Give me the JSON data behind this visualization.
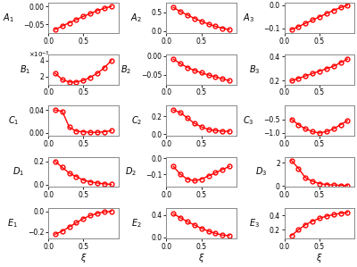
{
  "xi": [
    0.1,
    0.2,
    0.3,
    0.4,
    0.5,
    0.6,
    0.7,
    0.8,
    0.9
  ],
  "subplots": [
    {
      "label": "$A_1$",
      "row": 0,
      "col": 0,
      "values": [
        -0.065,
        -0.055,
        -0.046,
        -0.037,
        -0.028,
        -0.02,
        -0.012,
        -0.005,
        0.0
      ],
      "ylim": [
        -0.075,
        0.01
      ],
      "yticks": [
        -0.05,
        0.0
      ]
    },
    {
      "label": "$A_2$",
      "row": 0,
      "col": 1,
      "values": [
        0.63,
        0.52,
        0.43,
        0.34,
        0.26,
        0.19,
        0.13,
        0.08,
        0.04
      ],
      "ylim": [
        -0.05,
        0.75
      ],
      "yticks": [
        0.0,
        0.5
      ]
    },
    {
      "label": "$A_3$",
      "row": 0,
      "col": 2,
      "values": [
        -0.105,
        -0.092,
        -0.078,
        -0.064,
        -0.05,
        -0.036,
        -0.022,
        -0.01,
        0.0
      ],
      "ylim": [
        -0.12,
        0.01
      ],
      "yticks": [
        -0.1,
        0.0
      ]
    },
    {
      "label": "$B_1$",
      "row": 1,
      "col": 0,
      "values": [
        0.0024,
        0.0016,
        0.0013,
        0.0013,
        0.0015,
        0.0019,
        0.0024,
        0.0031,
        0.004
      ],
      "ylim": [
        0.001,
        0.0048
      ],
      "yticks": [
        0.002,
        0.004
      ],
      "sci": true
    },
    {
      "label": "$B_2$",
      "row": 1,
      "col": 1,
      "values": [
        -0.008,
        -0.02,
        -0.03,
        -0.038,
        -0.044,
        -0.05,
        -0.055,
        -0.06,
        -0.065
      ],
      "ylim": [
        -0.075,
        0.005
      ],
      "yticks": [
        -0.05,
        0.0
      ]
    },
    {
      "label": "$B_3$",
      "row": 1,
      "col": 2,
      "values": [
        0.2,
        0.22,
        0.24,
        0.26,
        0.28,
        0.3,
        0.32,
        0.35,
        0.38
      ],
      "ylim": [
        0.17,
        0.42
      ],
      "yticks": [
        0.2,
        0.4
      ]
    },
    {
      "label": "$C_1$",
      "row": 2,
      "col": 0,
      "values": [
        0.04,
        0.038,
        0.01,
        0.003,
        0.002,
        0.001,
        0.001,
        0.002,
        0.004
      ],
      "ylim": [
        -0.005,
        0.048
      ],
      "yticks": [
        0.0,
        0.04
      ]
    },
    {
      "label": "$C_2$",
      "row": 2,
      "col": 1,
      "values": [
        0.27,
        0.24,
        0.18,
        0.12,
        0.08,
        0.05,
        0.04,
        0.03,
        0.03
      ],
      "ylim": [
        -0.02,
        0.32
      ],
      "yticks": [
        0.0,
        0.2
      ]
    },
    {
      "label": "$C_3$",
      "row": 2,
      "col": 2,
      "values": [
        -0.5,
        -0.7,
        -0.85,
        -0.95,
        -1.0,
        -0.95,
        -0.85,
        -0.7,
        -0.55
      ],
      "ylim": [
        -1.1,
        0.0
      ],
      "yticks": [
        -1.0,
        -0.5
      ]
    },
    {
      "label": "$D_1$",
      "row": 3,
      "col": 0,
      "values": [
        0.2,
        0.15,
        0.1,
        0.07,
        0.04,
        0.025,
        0.015,
        0.008,
        0.003
      ],
      "ylim": [
        -0.02,
        0.24
      ],
      "yticks": [
        0.0,
        0.2
      ]
    },
    {
      "label": "$D_2$",
      "row": 3,
      "col": 1,
      "values": [
        -0.05,
        -0.1,
        -0.13,
        -0.14,
        -0.13,
        -0.11,
        -0.09,
        -0.07,
        -0.05
      ],
      "ylim": [
        -0.18,
        0.01
      ],
      "yticks": [
        -0.1,
        0.0
      ]
    },
    {
      "label": "$D_3$",
      "row": 3,
      "col": 2,
      "values": [
        2.2,
        1.5,
        0.7,
        0.4,
        0.2,
        0.12,
        0.08,
        0.05,
        0.04
      ],
      "ylim": [
        -0.1,
        2.5
      ],
      "yticks": [
        0.0,
        2.0
      ]
    },
    {
      "label": "$E_1$",
      "row": 4,
      "col": 0,
      "values": [
        -0.22,
        -0.19,
        -0.15,
        -0.11,
        -0.07,
        -0.04,
        -0.02,
        -0.005,
        0.0
      ],
      "ylim": [
        -0.26,
        0.03
      ],
      "yticks": [
        -0.2,
        0.0
      ]
    },
    {
      "label": "$E_2$",
      "row": 4,
      "col": 1,
      "values": [
        0.42,
        0.35,
        0.28,
        0.22,
        0.16,
        0.11,
        0.07,
        0.04,
        0.03
      ],
      "ylim": [
        -0.02,
        0.52
      ],
      "yticks": [
        0.0,
        0.4
      ]
    },
    {
      "label": "$E_3$",
      "row": 4,
      "col": 2,
      "values": [
        0.12,
        0.2,
        0.27,
        0.32,
        0.36,
        0.39,
        0.41,
        0.43,
        0.44
      ],
      "ylim": [
        0.08,
        0.5
      ],
      "yticks": [
        0.2,
        0.4
      ]
    }
  ],
  "line_color": "#ff0000",
  "marker": "o",
  "markersize": 3.5,
  "markerfacecolor": "none",
  "markeredgecolor": "#ff0000",
  "markeredgewidth": 1.0,
  "linewidth": 1.0,
  "xlabel": "$\\xi$",
  "xlim": [
    0,
    1.0
  ],
  "xticks": [
    0.0,
    0.5
  ]
}
